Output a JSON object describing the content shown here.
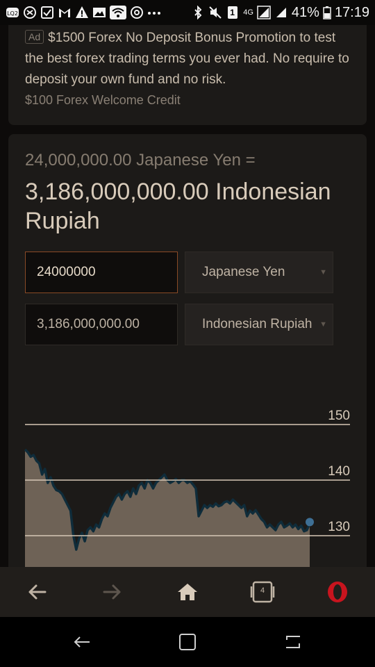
{
  "status_bar": {
    "left_icons": [
      "lq2-icon",
      "chat-app-icon",
      "checkbox-app-icon",
      "gmail-icon",
      "warning-icon",
      "image-icon",
      "wifi-icon",
      "vpn-icon",
      "more-icon"
    ],
    "network_label": "4G",
    "sim_label": "1",
    "battery_percent": "41%",
    "time": "17:19"
  },
  "ad": {
    "badge": "Ad",
    "text": "$1500 Forex No Deposit Bonus Promotion to test the best forex trading terms you ever had. No require to deposit your own fund and no risk.",
    "sub": "$100 Forex Welcome Credit"
  },
  "converter": {
    "from_summary": "24,000,000.00 Japanese Yen =",
    "to_summary": "3,186,000,000.00 Indonesian Rupiah",
    "amount_value": "24000000",
    "result_value": "3,186,000,000.00",
    "from_currency": "Japanese Yen",
    "to_currency": "Indonesian Rupiah"
  },
  "colors": {
    "accent_border": "#8a4a26",
    "chart_fill": "#6e6256",
    "chart_line": "#0f2c3a",
    "chart_end_dot": "#3e6f94",
    "opera_red": "#c8141e"
  },
  "chart_data": {
    "type": "area",
    "y_ticks": [
      150,
      140,
      130
    ],
    "ylim": [
      130,
      150
    ],
    "values": [
      145.5,
      145,
      144.2,
      144.5,
      143.5,
      143,
      141,
      142,
      139.5,
      140.5,
      139,
      138.2,
      138,
      137.5,
      136.5,
      135.5,
      134.5,
      130,
      127.5,
      129.5,
      130.5,
      129,
      131,
      131.5,
      130.8,
      132,
      131.5,
      133,
      134,
      133.5,
      135,
      136,
      137,
      137.5,
      136.5,
      137.5,
      138,
      137,
      138.5,
      137.5,
      139,
      139.5,
      138.5,
      140,
      139.5,
      138.5,
      139.5,
      140,
      140.5,
      141,
      140,
      139.5,
      139.8,
      140.2,
      139.5,
      140,
      140,
      139.5,
      139.8,
      139.2,
      138.5,
      133.5,
      134.5,
      135.5,
      135,
      135.5,
      135.2,
      135.8,
      135.3,
      135.5,
      136,
      136.2,
      135.8,
      136.5,
      136,
      135.5,
      135,
      135.5,
      133.5,
      134.5,
      134,
      134.6,
      133.8,
      133,
      132.5,
      131.5,
      132,
      131.5,
      131,
      132,
      132.5,
      131.5,
      131.8,
      132.2,
      131.5,
      132,
      131.2,
      131.8,
      130.8,
      131,
      132.2
    ]
  },
  "browser_toolbar": {
    "tabs_count": "4"
  }
}
